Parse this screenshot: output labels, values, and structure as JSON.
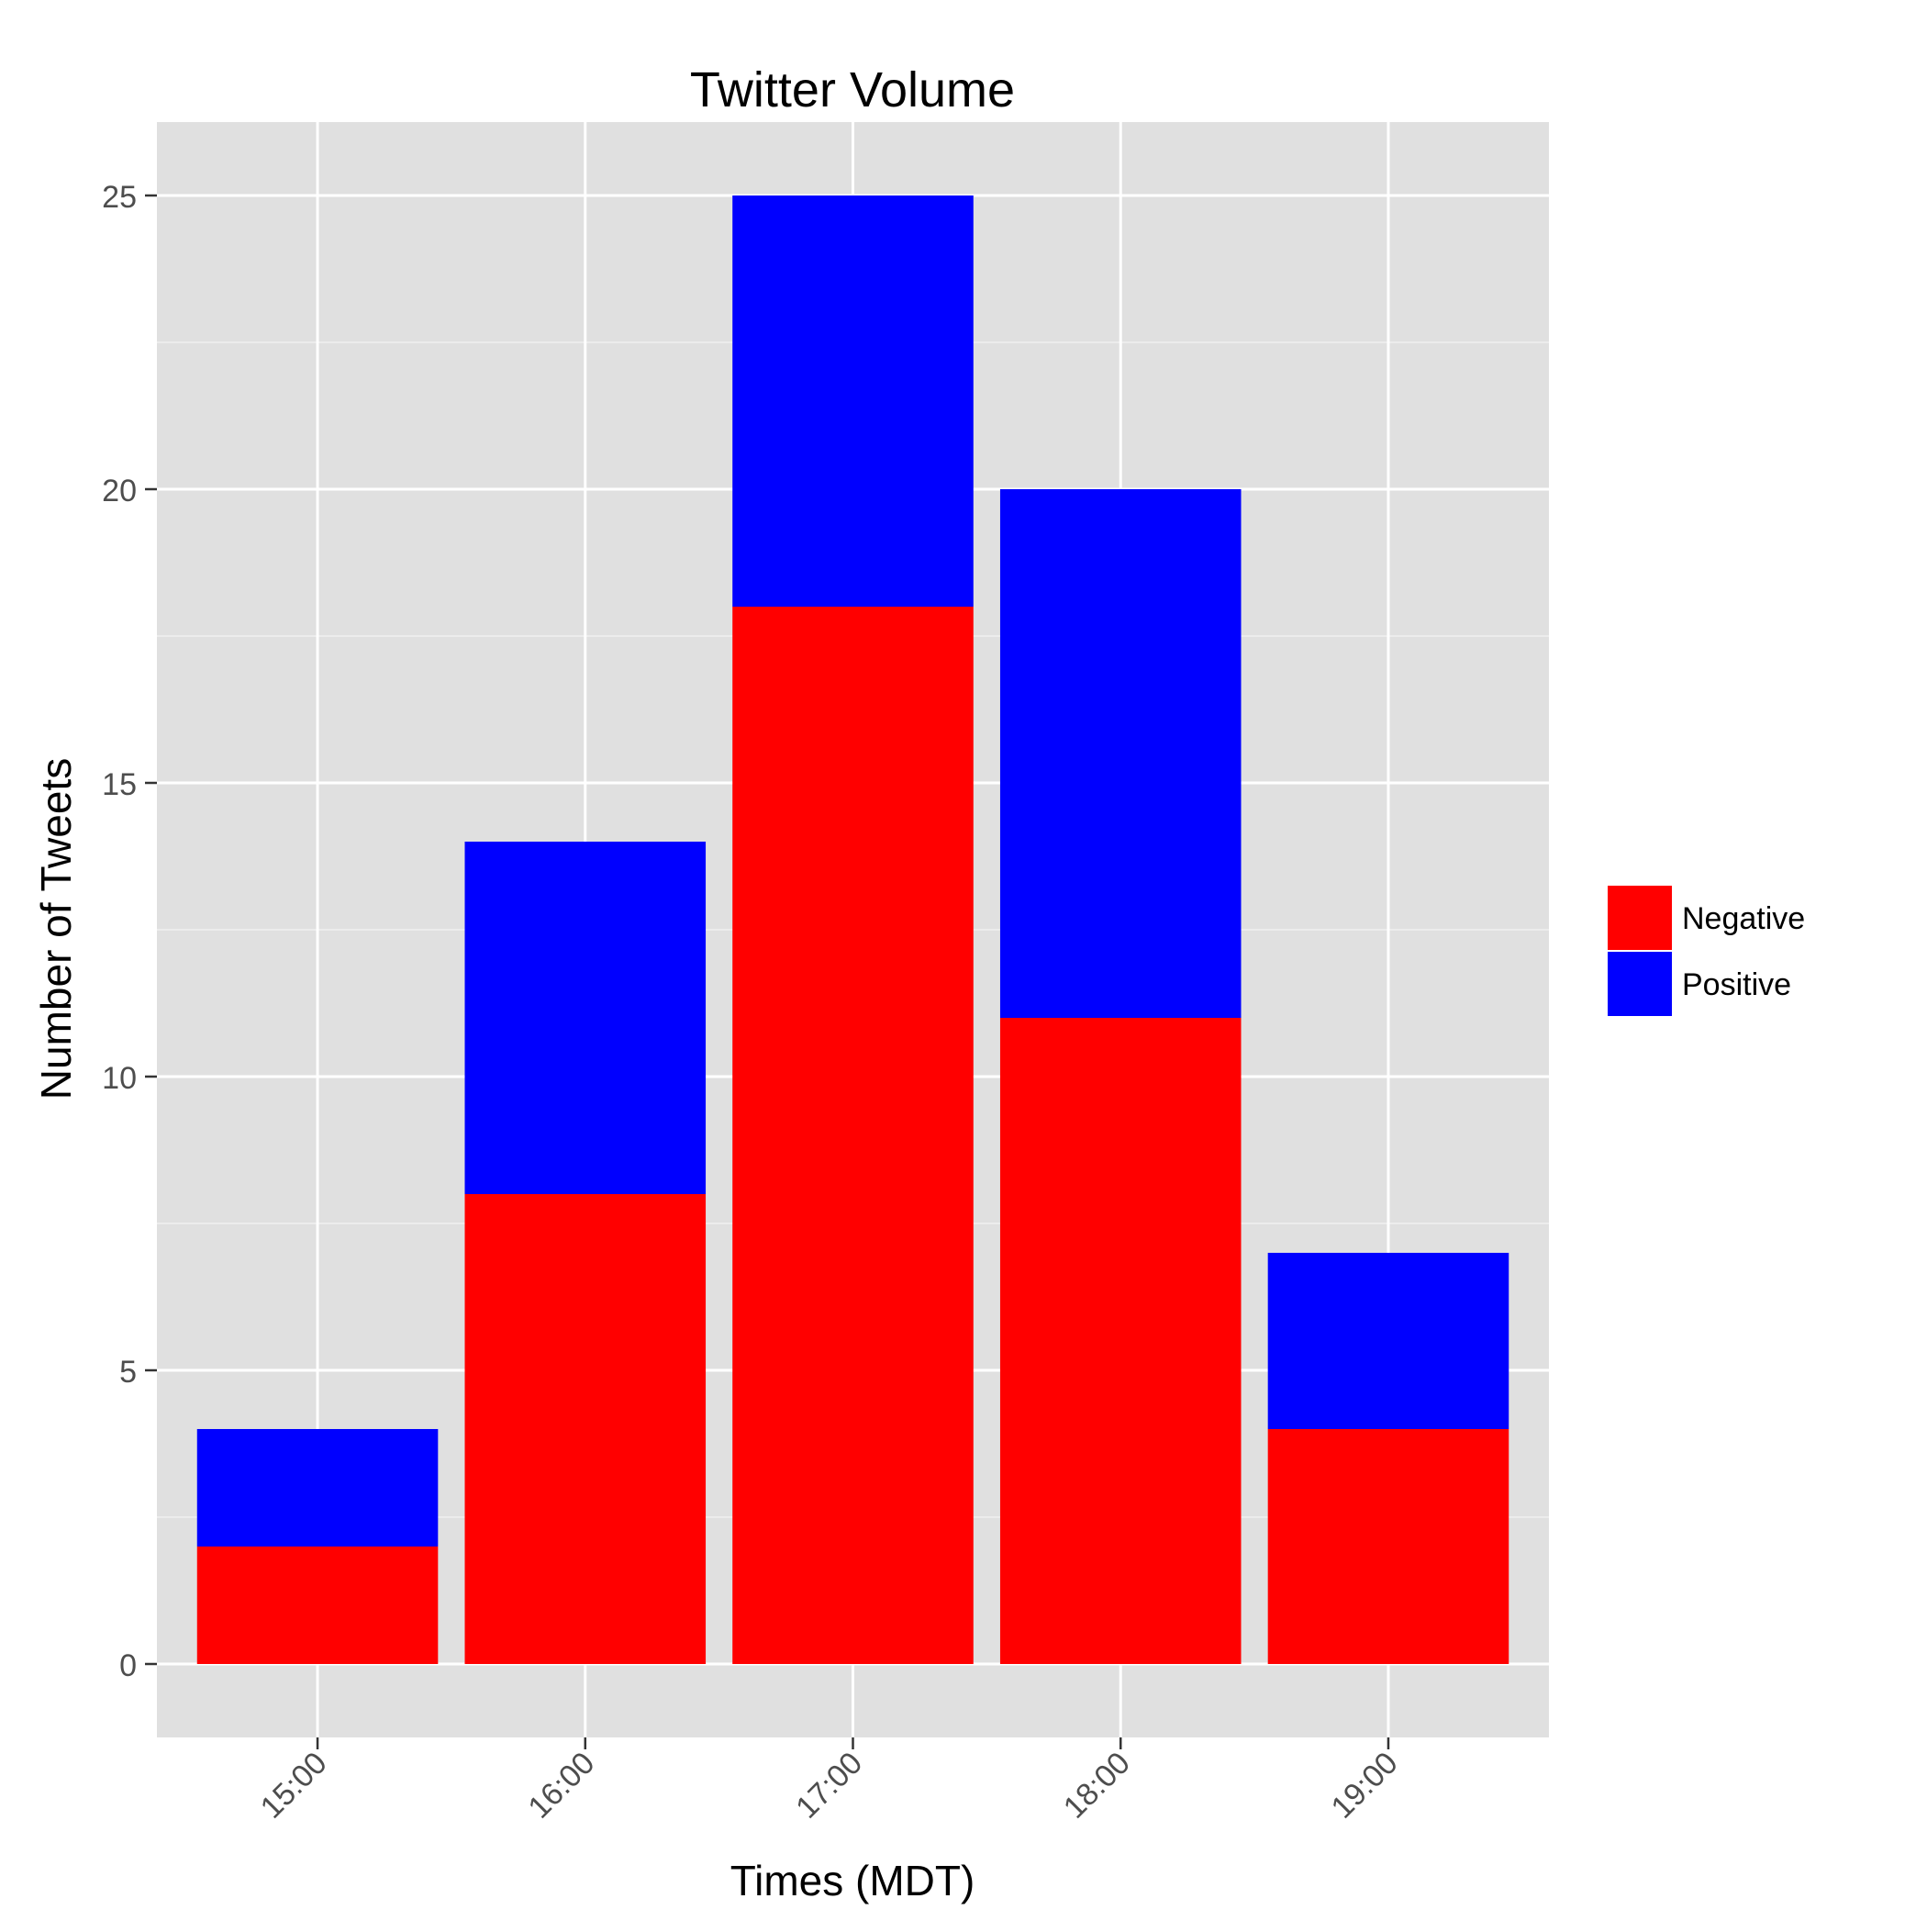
{
  "chart_data": {
    "type": "bar",
    "stacked": true,
    "title": "Twitter Volume",
    "xlabel": "Times (MDT)",
    "ylabel": "Number of Tweets",
    "categories": [
      "15:00",
      "16:00",
      "17:00",
      "18:00",
      "19:00"
    ],
    "series": [
      {
        "name": "Negative",
        "color": "#FF0000",
        "values": [
          2,
          8,
          18,
          11,
          4
        ]
      },
      {
        "name": "Positive",
        "color": "#0000FF",
        "values": [
          2,
          6,
          7,
          9,
          3
        ]
      }
    ],
    "ylim": [
      -1.25,
      26.25
    ],
    "yticks": [
      0,
      5,
      10,
      15,
      20,
      25
    ],
    "grid": true,
    "panel_background": "#E0E0E0",
    "gridline_color": "#FFFFFF",
    "legend_position": "right",
    "x_tick_label_rotation": "45 degrees"
  }
}
